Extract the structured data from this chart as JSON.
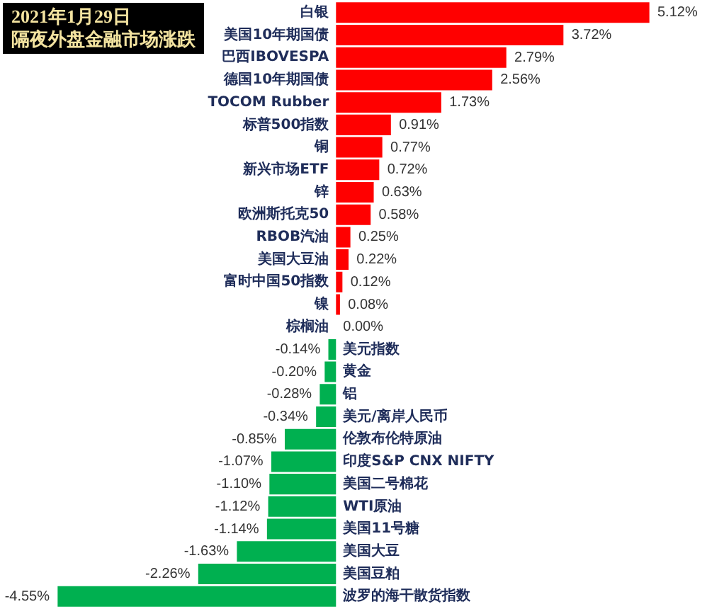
{
  "chart_data": {
    "type": "bar",
    "orientation": "horizontal",
    "title": "2021年1月29日",
    "subtitle": "隔夜外盘金融市场涨跌",
    "categories": [
      "白银",
      "美国10年期国债",
      "巴西IBOVESPA",
      "德国10年期国债",
      "TOCOM Rubber",
      "标普500指数",
      "铜",
      "新兴市场ETF",
      "锌",
      "欧洲斯托克50",
      "RBOB汽油",
      "美国大豆油",
      "富时中国50指数",
      "镍",
      "棕榈油",
      "美元指数",
      "黄金",
      "铝",
      "美元/离岸人民币",
      "伦敦布伦特原油",
      "印度S&P CNX NIFTY",
      "美国二号棉花",
      "WTI原油",
      "美国11号糖",
      "美国大豆",
      "美国豆粕",
      "波罗的海干散货指数"
    ],
    "values": [
      5.12,
      3.72,
      2.79,
      2.56,
      1.73,
      0.91,
      0.77,
      0.72,
      0.63,
      0.58,
      0.25,
      0.22,
      0.12,
      0.08,
      0.0,
      -0.14,
      -0.2,
      -0.28,
      -0.34,
      -0.85,
      -1.07,
      -1.1,
      -1.12,
      -1.14,
      -1.63,
      -2.26,
      -4.55
    ],
    "value_labels": [
      "5.12%",
      "3.72%",
      "2.79%",
      "2.56%",
      "1.73%",
      "0.91%",
      "0.77%",
      "0.72%",
      "0.63%",
      "0.58%",
      "0.25%",
      "0.22%",
      "0.12%",
      "0.08%",
      "0.00%",
      "-0.14%",
      "-0.20%",
      "-0.28%",
      "-0.34%",
      "-0.85%",
      "-1.07%",
      "-1.10%",
      "-1.12%",
      "-1.14%",
      "-1.63%",
      "-2.26%",
      "-4.55%"
    ],
    "colors": [
      "#ff0000",
      "#ff0000",
      "#ff0000",
      "#ff0000",
      "#ff0000",
      "#ff0000",
      "#ff0000",
      "#ff0000",
      "#ff0000",
      "#ff0000",
      "#ff0000",
      "#ff0000",
      "#ff0000",
      "#ff0000",
      "#ff0000",
      "#00b050",
      "#00b050",
      "#00b050",
      "#00b050",
      "#00b050",
      "#00b050",
      "#00b050",
      "#00b050",
      "#00b050",
      "#00b050",
      "#00b050",
      "#00b050"
    ],
    "legend": false
  }
}
